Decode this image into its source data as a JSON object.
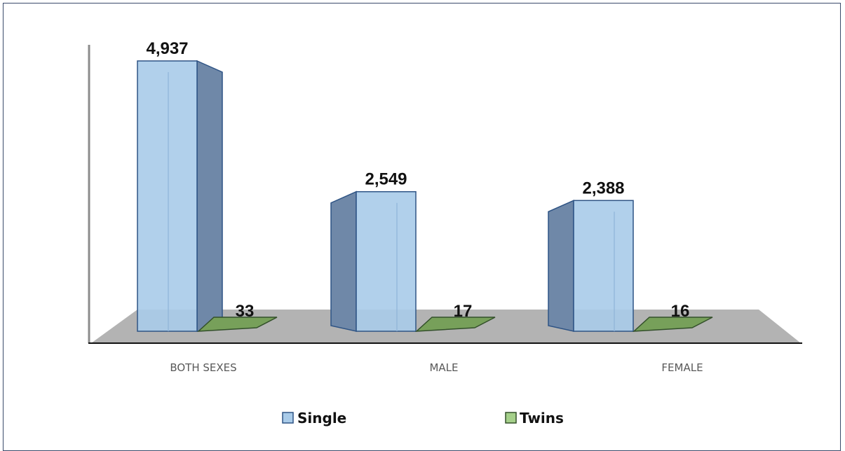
{
  "chart_data": {
    "type": "bar",
    "categories": [
      "BOTH SEXES",
      "MALE",
      "FEMALE"
    ],
    "series": [
      {
        "name": "Single",
        "values": [
          4937,
          2549,
          2388
        ],
        "labels": [
          "4,937",
          "2,549",
          "2,388"
        ],
        "color": "#a9cbe9"
      },
      {
        "name": "Twins",
        "values": [
          33,
          17,
          16
        ],
        "labels": [
          "33",
          "17",
          "16"
        ],
        "color": "#77a05a"
      }
    ],
    "ylim": [
      0,
      4937
    ],
    "grid": false,
    "legend_position": "bottom"
  }
}
